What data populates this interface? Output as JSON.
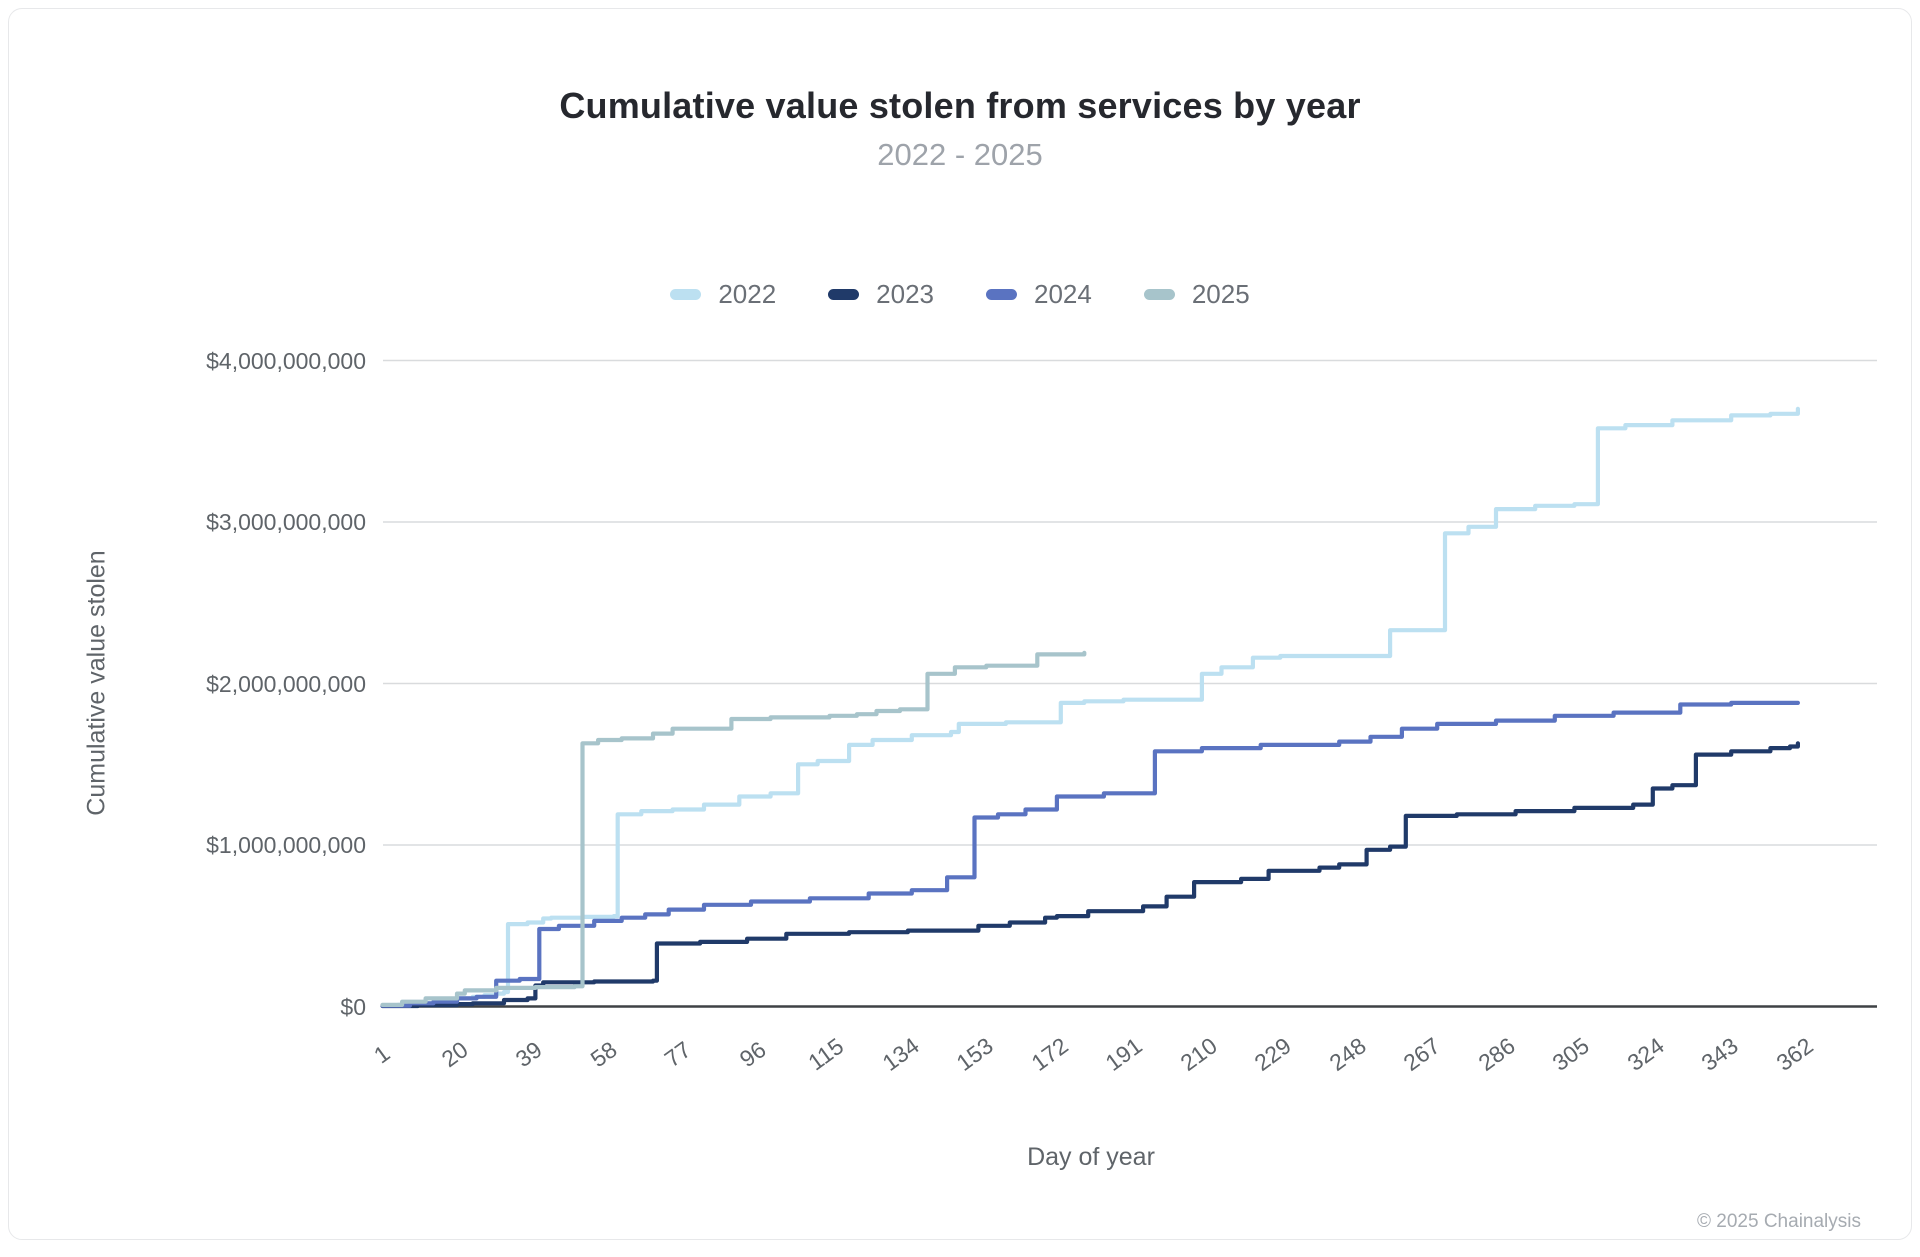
{
  "card": {
    "title": "Cumulative value stolen from services by year",
    "subtitle": "2022 - 2025",
    "copyright": "© 2025 Chainalysis"
  },
  "legend": {
    "items": [
      {
        "label": "2022",
        "color": "#bce0f1"
      },
      {
        "label": "2023",
        "color": "#203a69"
      },
      {
        "label": "2024",
        "color": "#5a73c1"
      },
      {
        "label": "2025",
        "color": "#a7c4cb"
      }
    ]
  },
  "chart_data": {
    "type": "line",
    "step": true,
    "title": "Cumulative value stolen from services by year",
    "subtitle": "2022 - 2025",
    "xlabel": "Day of year",
    "ylabel": "Cumulative value stolen",
    "xlim": [
      1,
      365
    ],
    "ylim": [
      0,
      4000000000
    ],
    "grid": "horizontal",
    "legend_position": "top",
    "units": "USD billions",
    "x_ticks": [
      1,
      20,
      39,
      58,
      77,
      96,
      115,
      134,
      153,
      172,
      191,
      210,
      229,
      248,
      267,
      286,
      305,
      324,
      343,
      362
    ],
    "y_ticks": [
      {
        "value": 4,
        "label": "$4,000,000,000"
      },
      {
        "value": 3,
        "label": "$3,000,000,000"
      },
      {
        "value": 2,
        "label": "$2,000,000,000"
      },
      {
        "value": 1,
        "label": "$1,000,000,000"
      },
      {
        "value": 0,
        "label": "$0"
      }
    ],
    "series": [
      {
        "name": "2022",
        "color": "#bce0f1",
        "points": [
          [
            1,
            0.005
          ],
          [
            5,
            0.01
          ],
          [
            10,
            0.02
          ],
          [
            15,
            0.03
          ],
          [
            18,
            0.045
          ],
          [
            20,
            0.05
          ],
          [
            24,
            0.06
          ],
          [
            27,
            0.07
          ],
          [
            30,
            0.08
          ],
          [
            32,
            0.09
          ],
          [
            33,
            0.51
          ],
          [
            38,
            0.52
          ],
          [
            42,
            0.545
          ],
          [
            44,
            0.55
          ],
          [
            52,
            0.555
          ],
          [
            60,
            0.56
          ],
          [
            61,
            1.19
          ],
          [
            67,
            1.21
          ],
          [
            75,
            1.22
          ],
          [
            83,
            1.25
          ],
          [
            92,
            1.3
          ],
          [
            100,
            1.32
          ],
          [
            107,
            1.5
          ],
          [
            112,
            1.52
          ],
          [
            120,
            1.62
          ],
          [
            126,
            1.65
          ],
          [
            136,
            1.68
          ],
          [
            146,
            1.7
          ],
          [
            148,
            1.75
          ],
          [
            160,
            1.76
          ],
          [
            174,
            1.88
          ],
          [
            180,
            1.89
          ],
          [
            190,
            1.9
          ],
          [
            210,
            2.06
          ],
          [
            215,
            2.1
          ],
          [
            223,
            2.16
          ],
          [
            230,
            2.17
          ],
          [
            258,
            2.33
          ],
          [
            272,
            2.93
          ],
          [
            278,
            2.97
          ],
          [
            285,
            3.08
          ],
          [
            295,
            3.1
          ],
          [
            305,
            3.11
          ],
          [
            311,
            3.58
          ],
          [
            318,
            3.6
          ],
          [
            330,
            3.63
          ],
          [
            345,
            3.66
          ],
          [
            355,
            3.67
          ],
          [
            362,
            3.7
          ]
        ]
      },
      {
        "name": "2023",
        "color": "#203a69",
        "points": [
          [
            1,
            0.003
          ],
          [
            10,
            0.008
          ],
          [
            20,
            0.015
          ],
          [
            24,
            0.02
          ],
          [
            32,
            0.04
          ],
          [
            38,
            0.05
          ],
          [
            40,
            0.13
          ],
          [
            42,
            0.15
          ],
          [
            55,
            0.155
          ],
          [
            70,
            0.16
          ],
          [
            71,
            0.39
          ],
          [
            82,
            0.4
          ],
          [
            94,
            0.42
          ],
          [
            104,
            0.45
          ],
          [
            120,
            0.46
          ],
          [
            135,
            0.47
          ],
          [
            153,
            0.5
          ],
          [
            161,
            0.52
          ],
          [
            170,
            0.55
          ],
          [
            173,
            0.56
          ],
          [
            181,
            0.59
          ],
          [
            195,
            0.62
          ],
          [
            201,
            0.68
          ],
          [
            208,
            0.77
          ],
          [
            220,
            0.79
          ],
          [
            227,
            0.84
          ],
          [
            240,
            0.86
          ],
          [
            245,
            0.88
          ],
          [
            252,
            0.97
          ],
          [
            258,
            0.99
          ],
          [
            262,
            1.18
          ],
          [
            275,
            1.19
          ],
          [
            290,
            1.21
          ],
          [
            305,
            1.23
          ],
          [
            320,
            1.25
          ],
          [
            325,
            1.35
          ],
          [
            330,
            1.37
          ],
          [
            336,
            1.56
          ],
          [
            345,
            1.58
          ],
          [
            355,
            1.6
          ],
          [
            360,
            1.61
          ],
          [
            362,
            1.63
          ]
        ]
      },
      {
        "name": "2024",
        "color": "#5a73c1",
        "points": [
          [
            1,
            0.005
          ],
          [
            8,
            0.02
          ],
          [
            14,
            0.03
          ],
          [
            20,
            0.05
          ],
          [
            25,
            0.06
          ],
          [
            30,
            0.16
          ],
          [
            36,
            0.17
          ],
          [
            41,
            0.48
          ],
          [
            46,
            0.5
          ],
          [
            55,
            0.53
          ],
          [
            62,
            0.55
          ],
          [
            68,
            0.57
          ],
          [
            74,
            0.6
          ],
          [
            83,
            0.63
          ],
          [
            95,
            0.65
          ],
          [
            110,
            0.67
          ],
          [
            125,
            0.7
          ],
          [
            136,
            0.72
          ],
          [
            145,
            0.8
          ],
          [
            152,
            1.17
          ],
          [
            158,
            1.19
          ],
          [
            165,
            1.22
          ],
          [
            173,
            1.3
          ],
          [
            185,
            1.32
          ],
          [
            198,
            1.58
          ],
          [
            210,
            1.6
          ],
          [
            225,
            1.62
          ],
          [
            245,
            1.64
          ],
          [
            253,
            1.67
          ],
          [
            261,
            1.72
          ],
          [
            270,
            1.75
          ],
          [
            285,
            1.77
          ],
          [
            300,
            1.8
          ],
          [
            315,
            1.82
          ],
          [
            332,
            1.87
          ],
          [
            345,
            1.88
          ],
          [
            362,
            1.88
          ]
        ]
      },
      {
        "name": "2025",
        "color": "#a7c4cb",
        "points": [
          [
            1,
            0.01
          ],
          [
            6,
            0.03
          ],
          [
            12,
            0.05
          ],
          [
            20,
            0.08
          ],
          [
            22,
            0.1
          ],
          [
            30,
            0.115
          ],
          [
            40,
            0.12
          ],
          [
            50,
            0.125
          ],
          [
            52,
            1.63
          ],
          [
            56,
            1.65
          ],
          [
            62,
            1.66
          ],
          [
            70,
            1.69
          ],
          [
            75,
            1.72
          ],
          [
            90,
            1.78
          ],
          [
            100,
            1.79
          ],
          [
            115,
            1.8
          ],
          [
            122,
            1.81
          ],
          [
            127,
            1.83
          ],
          [
            133,
            1.84
          ],
          [
            140,
            2.06
          ],
          [
            147,
            2.1
          ],
          [
            155,
            2.11
          ],
          [
            168,
            2.18
          ],
          [
            180,
            2.19
          ]
        ]
      }
    ]
  }
}
